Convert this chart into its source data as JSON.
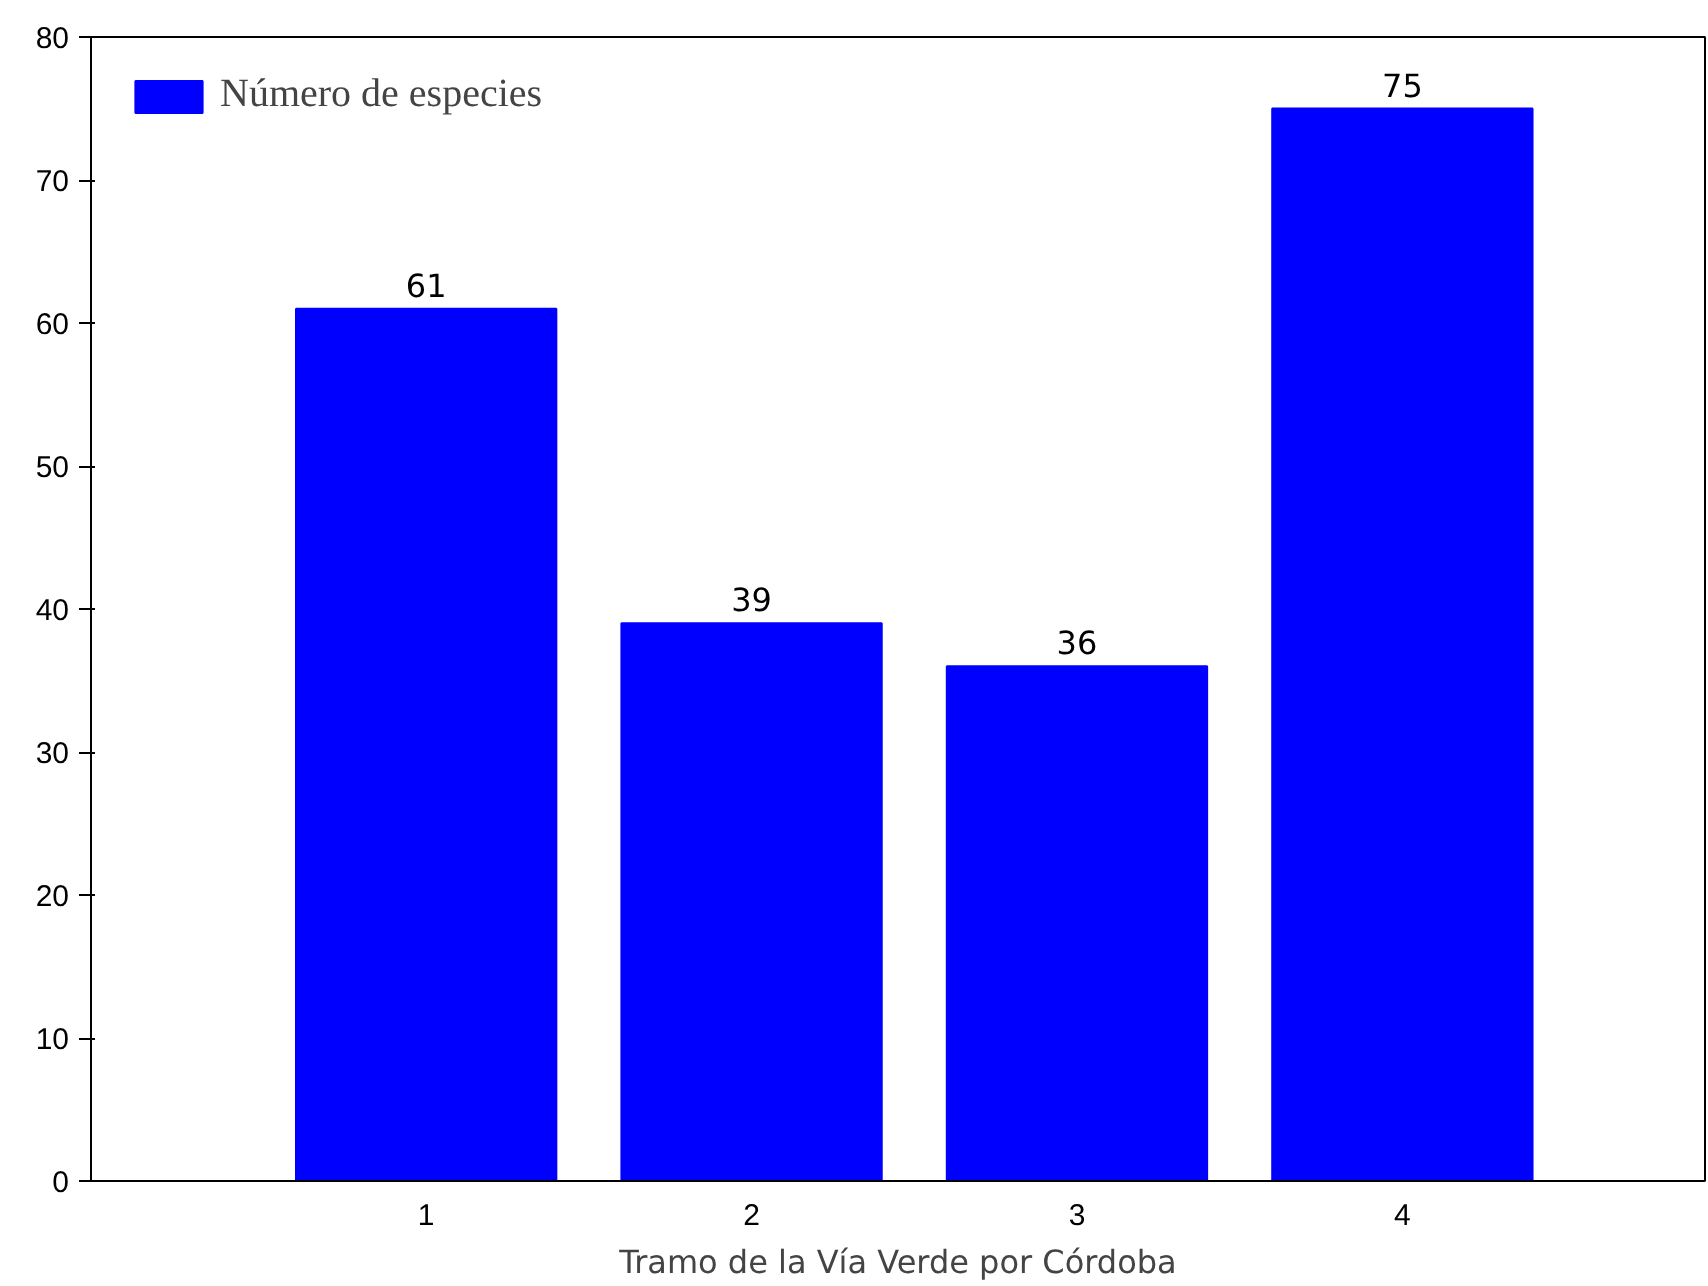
{
  "chart_data": {
    "type": "bar",
    "xlabel": "Tramo de la Vía Verde por Córdoba",
    "categories": [
      "1",
      "2",
      "3",
      "4"
    ],
    "series": [
      {
        "name": "Número de especies",
        "color": "#0000ff",
        "values": [
          61,
          39,
          36,
          75
        ]
      }
    ],
    "ylim": [
      0,
      80
    ],
    "yticks": [
      0,
      10,
      20,
      30,
      40,
      50,
      60,
      70,
      80
    ],
    "data_labels": true,
    "grid": false,
    "legend": "top left"
  }
}
